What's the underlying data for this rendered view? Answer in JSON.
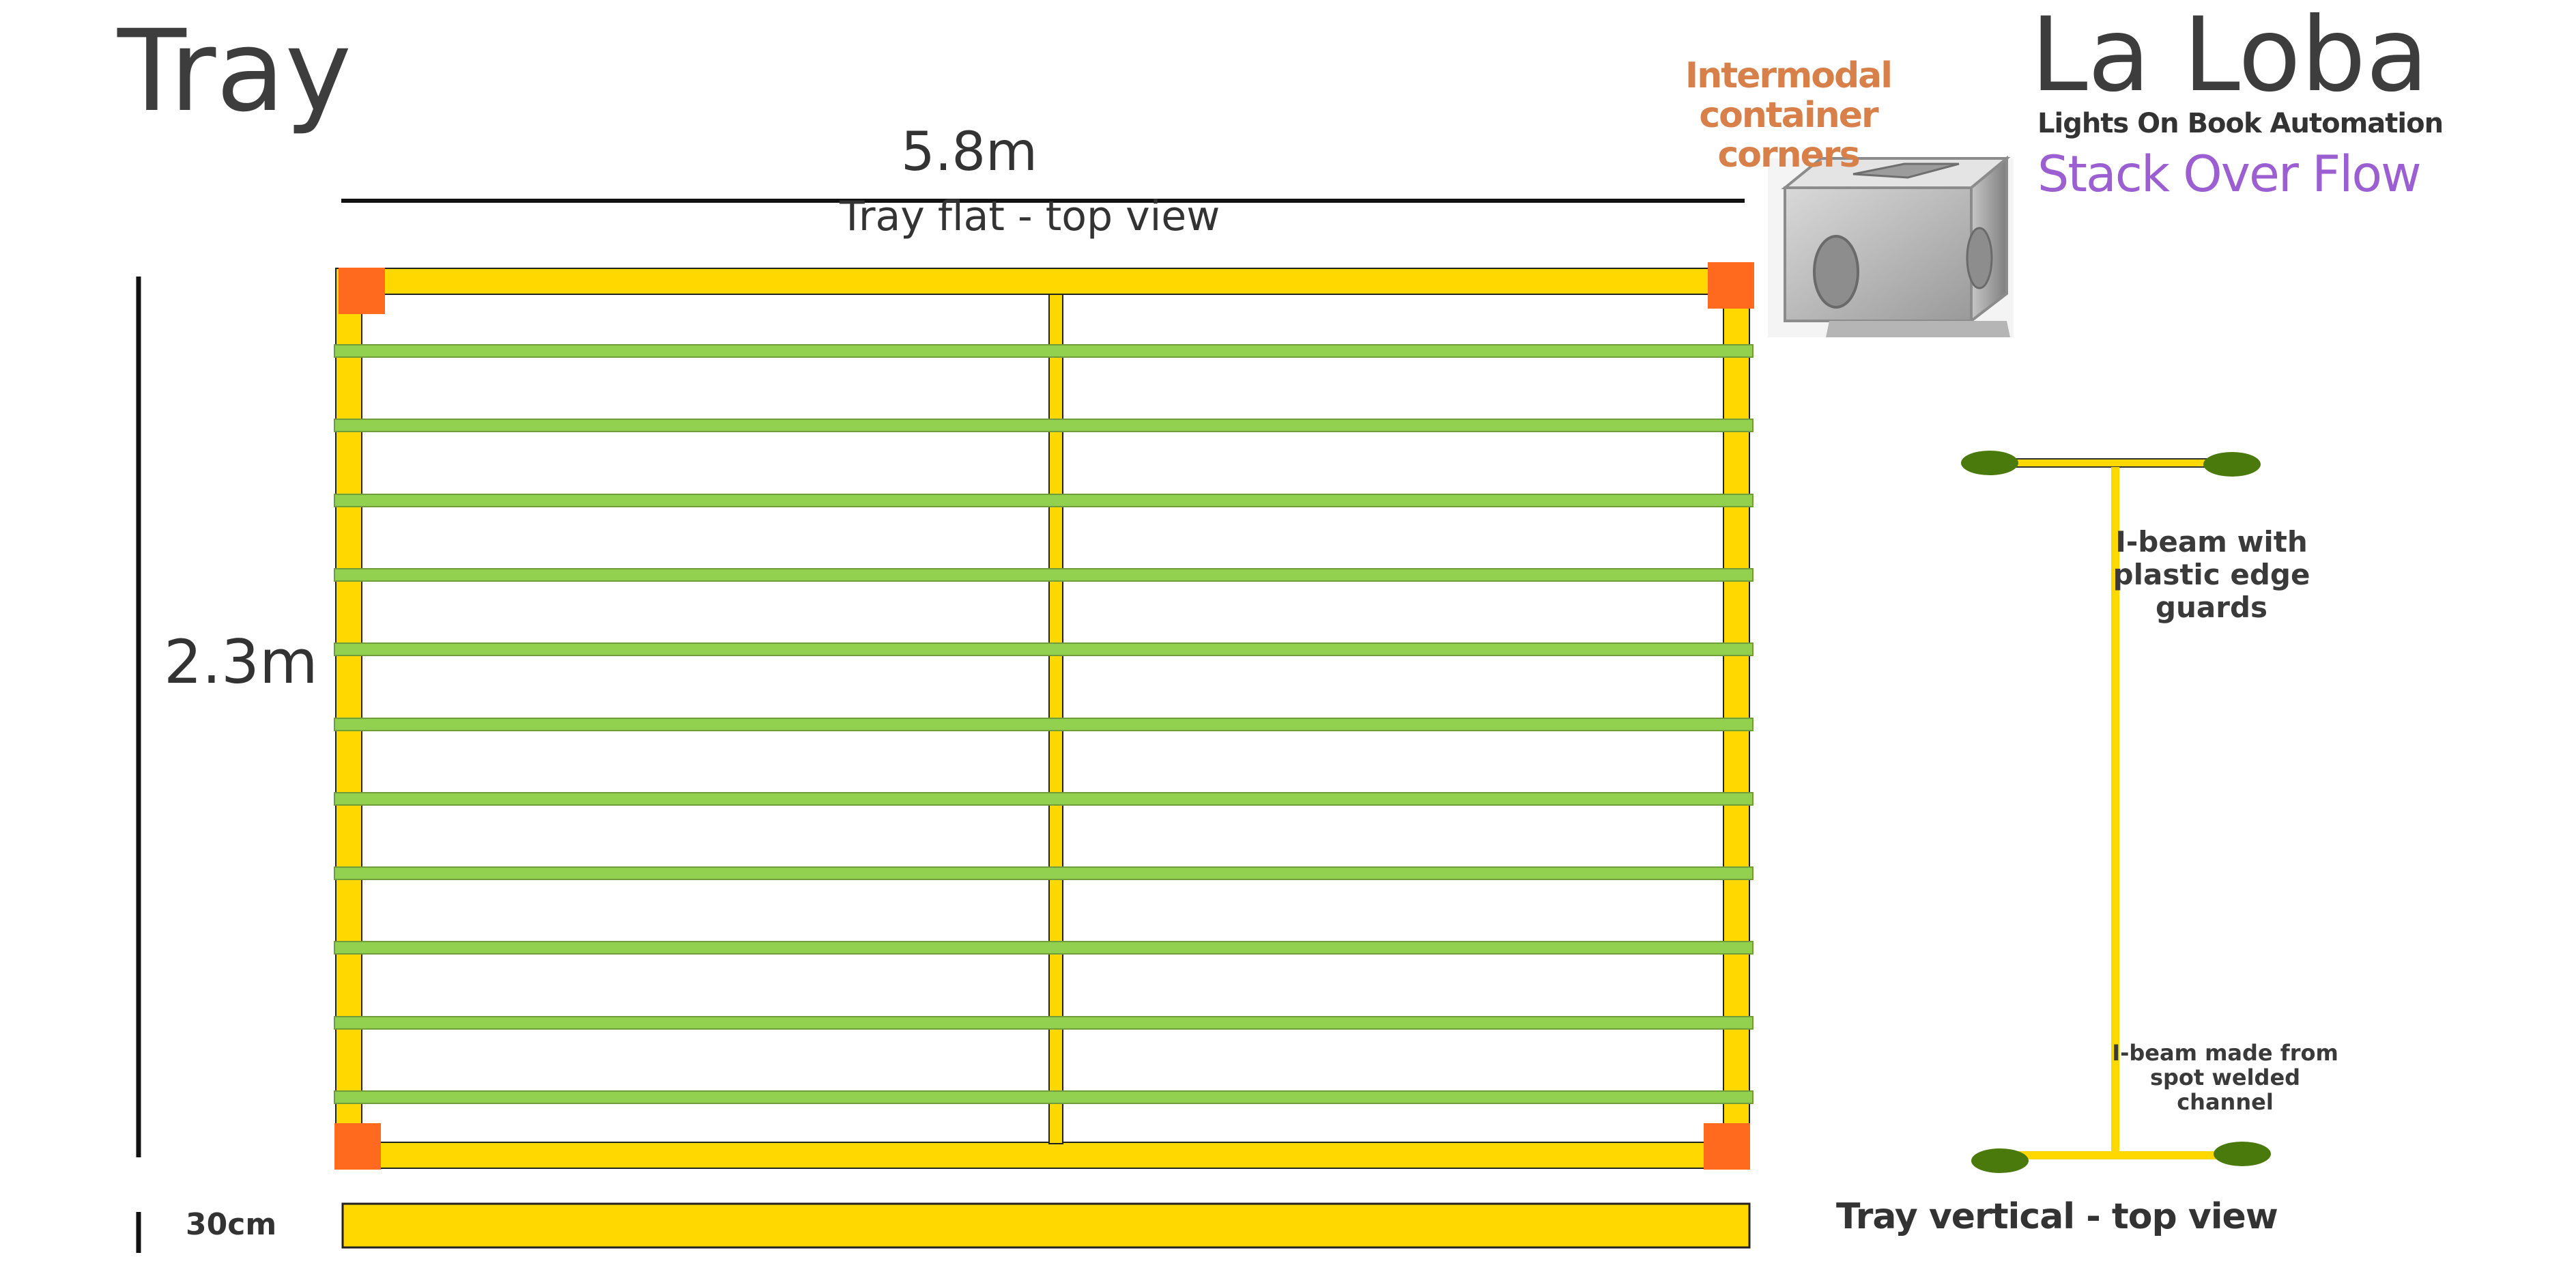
{
  "title": "Tray",
  "brand": {
    "name": "La Loba",
    "subtitle": "Lights On Book Automation",
    "tagline": "Stack Over Flow"
  },
  "container_corners_label": "Intermodal container corners",
  "tray_flat": {
    "width_label": "5.8m",
    "caption": "Tray flat - top view",
    "height_label": "2.3m",
    "slat_count": 11
  },
  "tray_vertical": {
    "depth_label": "30cm",
    "caption": "Tray vertical - top view"
  },
  "ibeam": {
    "label_top": "I-beam with plastic edge guards",
    "label_bottom": "I-beam made from spot welded channel"
  },
  "colors": {
    "frame": "#ffd800",
    "slat": "#92d050",
    "corner": "#ff6a1f",
    "guard": "#4a7a0c",
    "tagline": "#9b5fd1",
    "corners_label": "#d7804a"
  },
  "icons": {
    "container_corner": "container-corner-casting-icon"
  }
}
